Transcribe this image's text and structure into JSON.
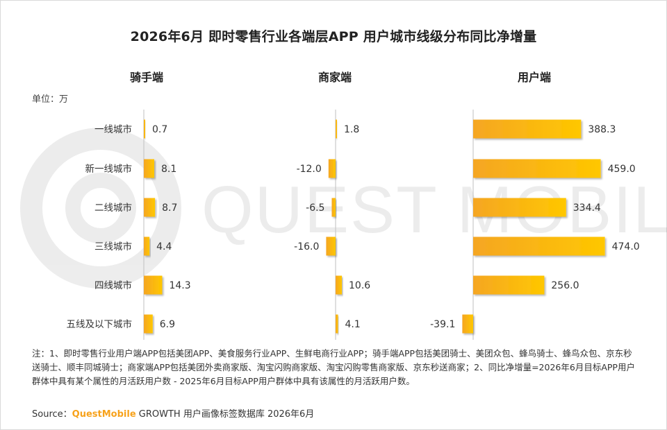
{
  "title": "2026年6月 即时零售行业各端层APP 用户城市线级分布同比净增量",
  "unit": "单位：万",
  "watermark": "QUEST MOBILE",
  "chart_data": {
    "type": "bar",
    "orientation": "horizontal",
    "categories": [
      "一线城市",
      "新一线城市",
      "二线城市",
      "三线城市",
      "四线城市",
      "五线及以下城市"
    ],
    "panels": [
      {
        "title": "骑手端",
        "values": [
          0.7,
          8.1,
          8.7,
          4.4,
          14.3,
          6.9
        ],
        "labels": [
          "0.7",
          "8.1",
          "8.7",
          "4.4",
          "14.3",
          "6.9"
        ]
      },
      {
        "title": "商家端",
        "values": [
          1.8,
          -12.0,
          -6.5,
          -16.0,
          10.6,
          4.1
        ],
        "labels": [
          "1.8",
          "-12.0",
          "-6.5",
          "-16.0",
          "10.6",
          "4.1"
        ]
      },
      {
        "title": "用户端",
        "values": [
          388.3,
          459.0,
          334.4,
          474.0,
          256.0,
          -39.1
        ],
        "labels": [
          "388.3",
          "459.0",
          "334.4",
          "474.0",
          "256.0",
          "-39.1"
        ]
      }
    ],
    "bar_color": "#ffc000",
    "bar_color_dark": "#f5a623"
  },
  "notes": "注：1、即时零售行业用户端APP包括美团APP、美食服务行业APP、生鲜电商行业APP；骑手端APP包括美团骑士、美团众包、蜂鸟骑士、蜂鸟众包、京东秒送骑士、顺丰同城骑士；商家端APP包括美团外卖商家版、淘宝闪购商家版、淘宝闪购零售商家版、京东秒送商家；2、同比净增量=2026年6月目标APP用户群体中具有某个属性的月活跃用户数 - 2025年6月目标APP用户群体中具有该属性的月活跃用户数。",
  "source": {
    "label": "Source：",
    "brand": "QuestMobile",
    "text": " GROWTH 用户画像标签数据库 2026年6月"
  }
}
